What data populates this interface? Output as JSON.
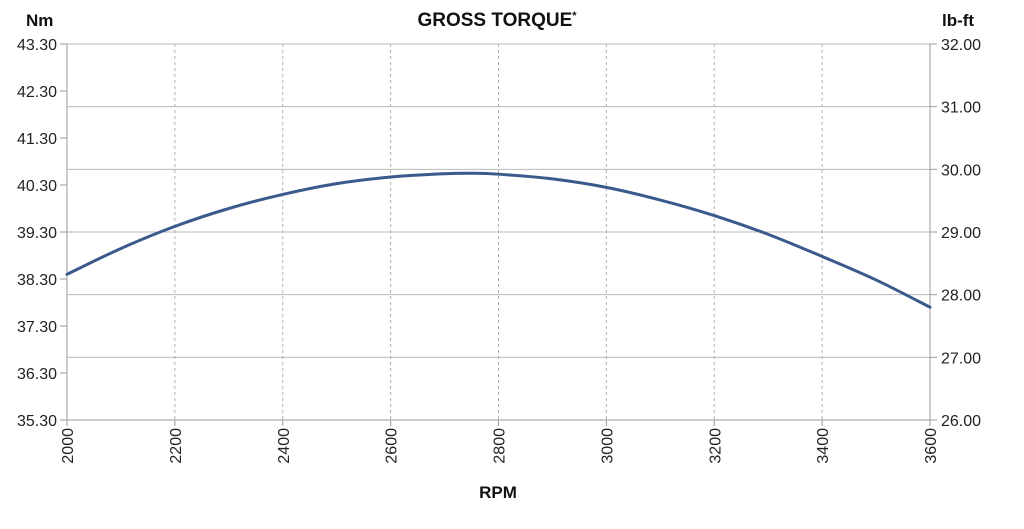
{
  "chart_data": {
    "type": "line",
    "title": "GROSS TORQUE",
    "title_mark": "*",
    "xlabel": "RPM",
    "ylabel_left": "Nm",
    "ylabel_right": "lb-ft",
    "xlim": [
      2000,
      3600
    ],
    "x_ticks": [
      "2000",
      "2200",
      "2400",
      "2600",
      "2800",
      "3000",
      "3200",
      "3400",
      "3600"
    ],
    "ylim_left": [
      35.3,
      43.3
    ],
    "y_ticks_left": [
      "43.30",
      "42.30",
      "41.30",
      "40.30",
      "39.30",
      "38.30",
      "37.30",
      "36.30",
      "35.30"
    ],
    "ylim_right": [
      26.0,
      32.0
    ],
    "y_ticks_right": [
      "32.00",
      "31.00",
      "30.00",
      "29.00",
      "28.00",
      "27.00",
      "26.00"
    ],
    "grid": true,
    "series": [
      {
        "axis": "left",
        "color": "#3a5a8c",
        "x": [
          2000,
          2100,
          2200,
          2300,
          2400,
          2500,
          2600,
          2700,
          2750,
          2800,
          2900,
          3000,
          3100,
          3200,
          3300,
          3400,
          3500,
          3600
        ],
        "y": [
          38.4,
          38.95,
          39.42,
          39.8,
          40.1,
          40.33,
          40.47,
          40.54,
          40.55,
          40.53,
          40.43,
          40.25,
          39.98,
          39.65,
          39.25,
          38.78,
          38.28,
          37.7
        ]
      }
    ]
  }
}
